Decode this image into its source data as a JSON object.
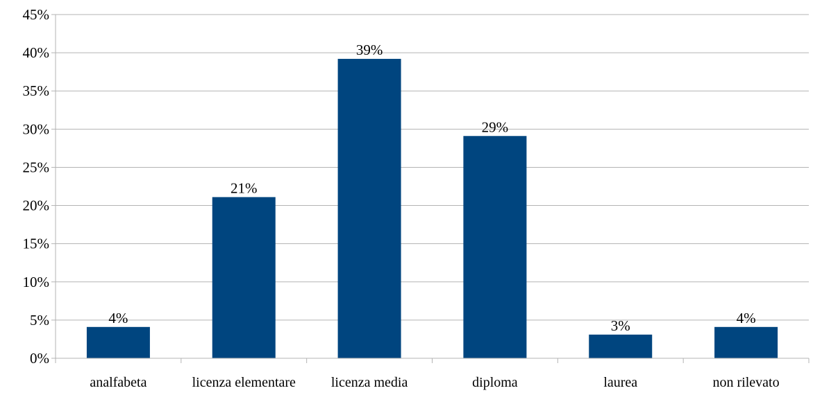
{
  "chart_data": {
    "type": "bar",
    "title": "",
    "xlabel": "",
    "ylabel": "",
    "categories": [
      "analfabeta",
      "licenza elementare",
      "licenza media",
      "diploma",
      "laurea",
      "non rilevato"
    ],
    "values": [
      4.1,
      21.1,
      39.2,
      29.1,
      3.1,
      4.1
    ],
    "data_labels": [
      "4%",
      "21%",
      "39%",
      "29%",
      "3%",
      "4%"
    ],
    "ylim": [
      0,
      45
    ],
    "yticks": [
      0,
      5,
      10,
      15,
      20,
      25,
      30,
      35,
      40,
      45
    ],
    "ytick_labels": [
      "0%",
      "5%",
      "10%",
      "15%",
      "20%",
      "25%",
      "30%",
      "35%",
      "40%",
      "45%"
    ],
    "grid": true,
    "legend": "none",
    "bar_color": "#00457f",
    "grid_color": "#b3b3b3"
  }
}
